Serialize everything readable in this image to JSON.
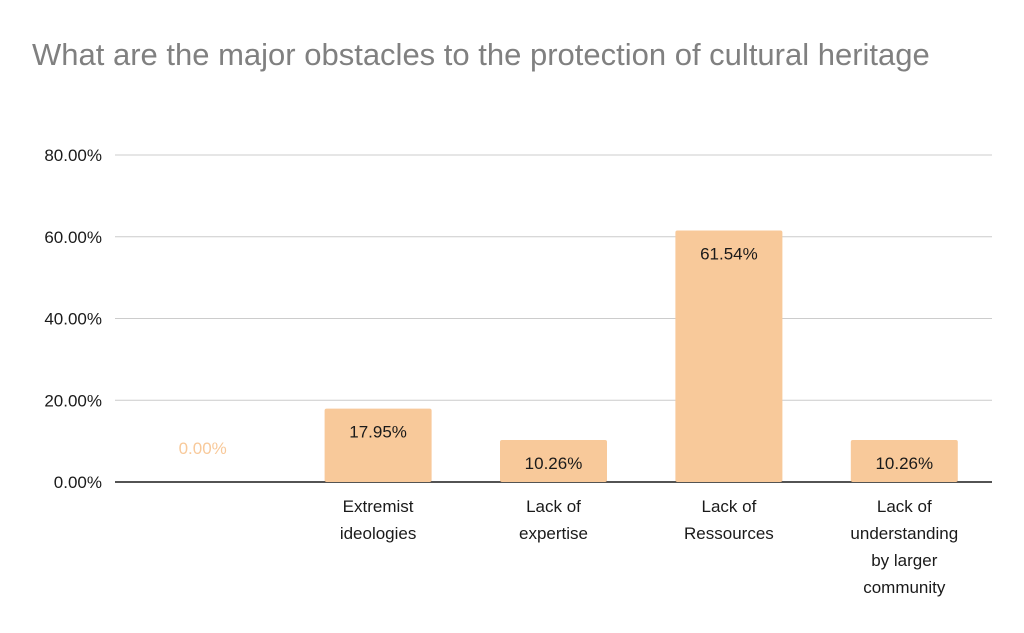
{
  "chart_data": {
    "type": "bar",
    "title": "What are the major obstacles to the protection of cultural heritage",
    "xlabel": "",
    "ylabel": "",
    "categories": [
      [
        ""
      ],
      [
        "Extremist",
        "ideologies"
      ],
      [
        "Lack of",
        "expertise"
      ],
      [
        "Lack of",
        "Ressources"
      ],
      [
        "Lack of",
        "understanding",
        "by larger",
        "community"
      ]
    ],
    "values": [
      0.0,
      17.95,
      10.26,
      61.54,
      10.26
    ],
    "data_labels": [
      "0.00%",
      "17.95%",
      "10.26%",
      "61.54%",
      "10.26%"
    ],
    "ylim": [
      0,
      80
    ],
    "y_ticks": [
      0,
      20,
      40,
      60,
      80
    ],
    "y_tick_labels": [
      "0.00%",
      "20.00%",
      "40.00%",
      "60.00%",
      "80.00%"
    ],
    "grid": true,
    "legend": "none",
    "colors": {
      "bar": "#f8c99a",
      "grid": "#cccccc",
      "axis": "#1a1a1a",
      "zero_label": "#f8c99a",
      "title": "#808080"
    }
  }
}
